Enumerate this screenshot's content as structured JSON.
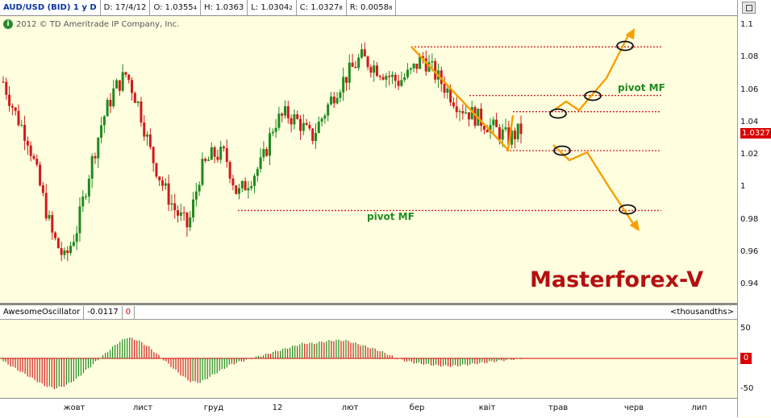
{
  "header": {
    "symbol": "AUD/USD (BID) 1 y D",
    "date": "D: 17/4/12",
    "open_main": "O: 1.0355",
    "open_sub": "4",
    "high": "H: 1.0363",
    "low_main": "L: 1.0304",
    "low_sub": "2",
    "close_main": "C: 1.0327",
    "close_sub": "8",
    "range_main": "R: 0.0058",
    "range_sub": "8"
  },
  "copyright": "2012 © TD Ameritrade IP Company, Inc.",
  "watermark": "Masterforex-V",
  "price_tag": "1.0327",
  "oscillator": {
    "name": "AwesomeOscillator",
    "value": "-0.0117",
    "zero": "0",
    "units": "<thousandths>",
    "zero_tag": "0"
  },
  "colors": {
    "up": "#1f8a1f",
    "down": "#d11a1a",
    "level": "#d42020",
    "arrow": "#f5a000"
  },
  "chart_data": [
    {
      "type": "candlestick",
      "title": "AUD/USD (BID) 1 y D",
      "ylim": [
        0.93,
        1.11
      ],
      "yticks": [
        "1.1",
        "1.08",
        "1.06",
        "1.04",
        "1.02",
        "1",
        "0.98",
        "0.96",
        "0.94"
      ],
      "xticks": [
        "жовт",
        "лист",
        "груд",
        "12",
        "лют",
        "бер",
        "квіт",
        "трав",
        "черв",
        "лип"
      ],
      "last_close": 1.0327,
      "levels": [
        {
          "value": 1.0865,
          "label": ""
        },
        {
          "value": 1.0565,
          "label": "pivot MF"
        },
        {
          "value": 1.0465,
          "label": ""
        },
        {
          "value": 1.0225,
          "label": ""
        },
        {
          "value": 0.9855,
          "label": "pivot MF"
        }
      ],
      "approx_close_path": [
        1.065,
        1.045,
        1.03,
        1.0,
        0.97,
        0.955,
        0.975,
        1.01,
        1.04,
        1.06,
        1.07,
        1.05,
        1.02,
        1.0,
        0.985,
        0.975,
        1.01,
        1.02,
        1.02,
        0.995,
        1.005,
        1.015,
        1.04,
        1.045,
        1.04,
        1.03,
        1.045,
        1.06,
        1.07,
        1.08,
        1.075,
        1.07,
        1.065,
        1.07,
        1.08,
        1.07,
        1.06,
        1.05,
        1.045,
        1.04,
        1.035,
        1.03,
        1.035
      ]
    },
    {
      "type": "bar",
      "title": "AwesomeOscillator",
      "ylim": [
        -55,
        55
      ],
      "yticks": [
        "50",
        "0",
        "-50"
      ],
      "last_value": -0.0117,
      "approx_values": [
        -5,
        -15,
        -25,
        -35,
        -45,
        -50,
        -45,
        -35,
        -20,
        -5,
        10,
        25,
        35,
        30,
        20,
        5,
        -10,
        -25,
        -38,
        -40,
        -30,
        -20,
        -10,
        -5,
        0,
        5,
        10,
        15,
        20,
        25,
        25,
        28,
        30,
        30,
        25,
        20,
        15,
        8,
        0,
        -5,
        -8,
        -10,
        -12,
        -13,
        -12,
        -10,
        -8,
        -6,
        -4,
        -2,
        0
      ]
    }
  ]
}
